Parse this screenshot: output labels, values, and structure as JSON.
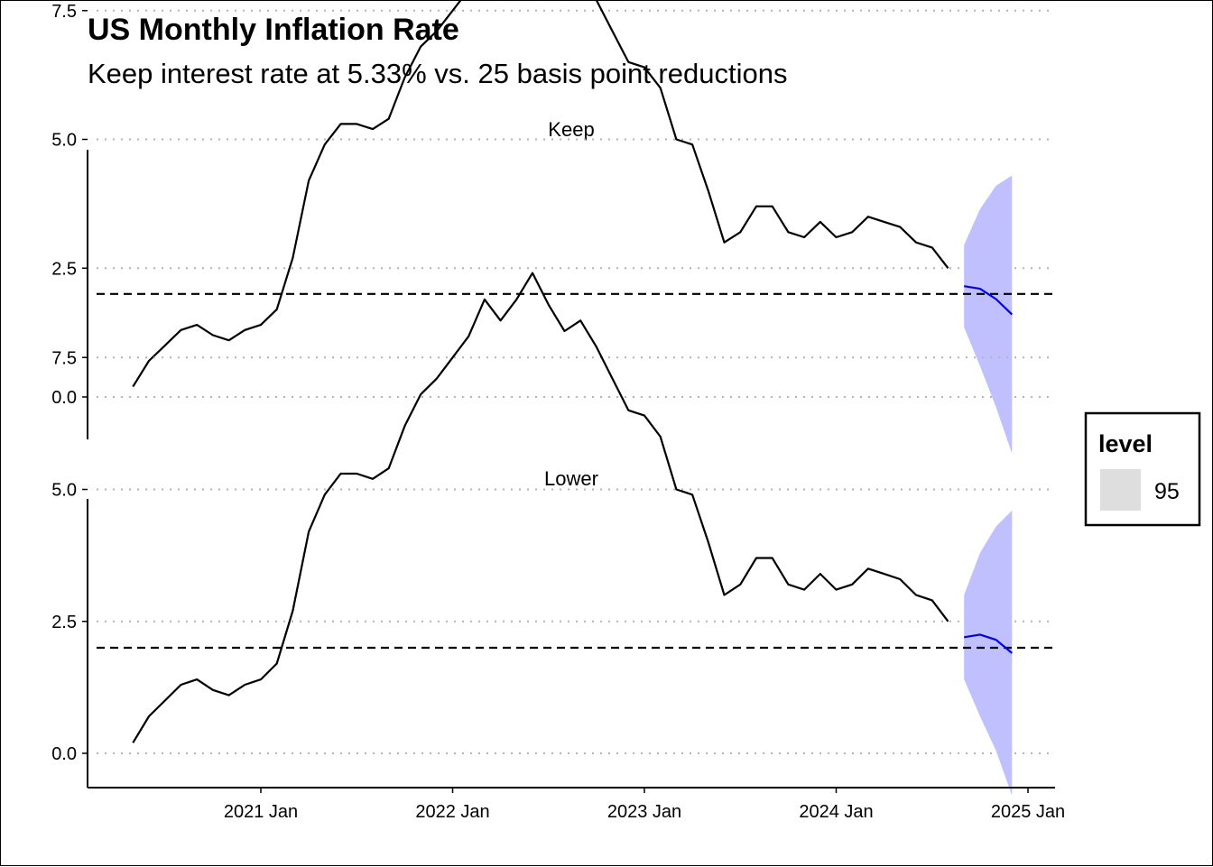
{
  "chart_data": {
    "type": "line",
    "title": "US Monthly Inflation Rate",
    "subtitle": "Keep interest rate at 5.33% vs. 25 basis point reductions",
    "xlabel": "",
    "ylabel": "",
    "x_ticks": [
      "2021 Jan",
      "2022 Jan",
      "2023 Jan",
      "2024 Jan",
      "2025 Jan"
    ],
    "y_ticks": [
      "0.0",
      "2.5",
      "5.0",
      "7.5"
    ],
    "ylim": [
      -1.6,
      9.6
    ],
    "reference_line": {
      "y": 2.0,
      "style": "dashed"
    },
    "grid": "horizontal dotted",
    "history": {
      "start": "2020-05",
      "values": [
        0.2,
        0.7,
        1.0,
        1.3,
        1.4,
        1.2,
        1.1,
        1.3,
        1.4,
        1.7,
        2.7,
        4.2,
        4.9,
        5.3,
        5.3,
        5.2,
        5.4,
        6.2,
        6.8,
        7.1,
        7.5,
        7.9,
        8.6,
        8.2,
        8.6,
        9.1,
        8.5,
        8.0,
        8.2,
        7.7,
        7.1,
        6.5,
        6.4,
        6.0,
        5.0,
        4.9,
        4.0,
        3.0,
        3.2,
        3.7,
        3.7,
        3.2,
        3.1,
        3.4,
        3.1,
        3.2,
        3.5,
        3.4,
        3.3,
        3.0,
        2.9,
        2.5
      ]
    },
    "panels": [
      {
        "label": "Keep",
        "forecast": {
          "months": [
            "2024-09",
            "2024-10",
            "2024-11",
            "2024-12"
          ],
          "mean": [
            2.15,
            2.1,
            1.9,
            1.6
          ],
          "lower95": [
            1.35,
            0.6,
            -0.2,
            -1.1
          ],
          "upper95": [
            2.95,
            3.65,
            4.1,
            4.3
          ]
        }
      },
      {
        "label": "Lower",
        "forecast": {
          "months": [
            "2024-09",
            "2024-10",
            "2024-11",
            "2024-12"
          ],
          "mean": [
            2.2,
            2.25,
            2.15,
            1.9
          ],
          "lower95": [
            1.4,
            0.7,
            0.05,
            -0.8
          ],
          "upper95": [
            3.0,
            3.8,
            4.3,
            4.6
          ]
        }
      }
    ],
    "legend": {
      "title": "level",
      "entries": [
        "95"
      ],
      "placement": "right"
    },
    "colors": {
      "history_line": "#000000",
      "forecast_line": "#0000ee",
      "forecast_band": "#c0c0ff",
      "grid": "#b3b3b3",
      "legend_swatch": "#dedede"
    }
  }
}
